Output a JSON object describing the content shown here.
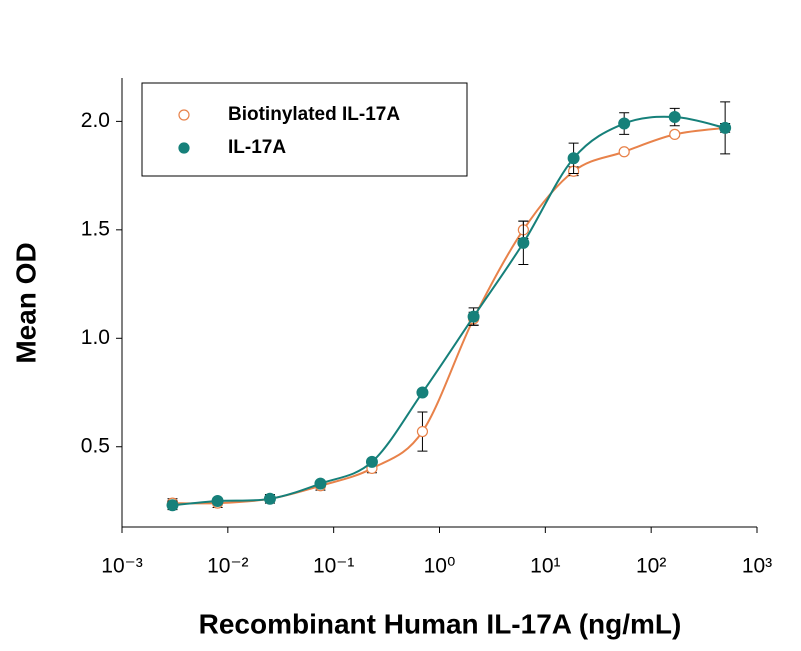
{
  "chart_data": {
    "type": "scatter",
    "xlabel": "Recombinant Human IL-17A (ng/mL)",
    "ylabel": "Mean OD",
    "log_x": true,
    "xlim": [
      0.001,
      1000
    ],
    "xticks": [
      {
        "value": 0.001,
        "label": "10⁻³"
      },
      {
        "value": 0.01,
        "label": "10⁻²"
      },
      {
        "value": 0.1,
        "label": "10⁻¹"
      },
      {
        "value": 1,
        "label": "10⁰"
      },
      {
        "value": 10,
        "label": "10¹"
      },
      {
        "value": 100,
        "label": "10²"
      },
      {
        "value": 1000,
        "label": "10³"
      }
    ],
    "ylim": [
      0.13,
      2.2
    ],
    "yticks": [
      0.5,
      {
        "value": 1.0,
        "label": "1.0"
      },
      1.5,
      {
        "value": 2.0,
        "label": "2.0"
      }
    ],
    "legend": "upper left",
    "x": [
      0.003,
      0.008,
      0.025,
      0.075,
      0.23,
      0.69,
      2.1,
      6.2,
      18.5,
      55.6,
      167,
      500
    ],
    "series": [
      {
        "name": "Biotinylated IL-17A",
        "color": "#e8824a",
        "marker": "open",
        "values": [
          0.24,
          0.24,
          0.26,
          0.32,
          0.4,
          0.57,
          1.09,
          1.5,
          1.77,
          1.86,
          1.94,
          1.97
        ],
        "errors": [
          0.02,
          0.02,
          0.02,
          0.02,
          0.02,
          0.09,
          0.03,
          0.04,
          0.02,
          0.01,
          0.01,
          0.02
        ]
      },
      {
        "name": "IL-17A",
        "color": "#16807a",
        "marker": "filled",
        "values": [
          0.23,
          0.25,
          0.26,
          0.33,
          0.43,
          0.75,
          1.1,
          1.44,
          1.83,
          1.99,
          2.02,
          1.97
        ],
        "errors": [
          0.02,
          0.01,
          0.01,
          0.01,
          0.01,
          0.01,
          0.04,
          0.1,
          0.07,
          0.05,
          0.04,
          0.12
        ]
      }
    ]
  }
}
